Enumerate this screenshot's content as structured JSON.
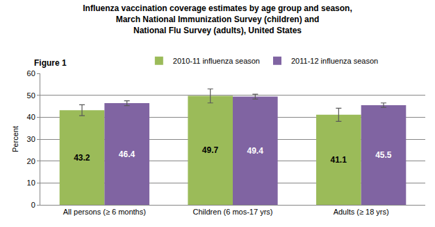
{
  "chart_data": {
    "type": "bar",
    "title": "Influenza vaccination coverage estimates by age group and season,\nMarch National Immunization Survey (children) and\nNational Flu Survey (adults), United States",
    "annotations": [
      "Figure 1"
    ],
    "y_label": "Percent",
    "categories": [
      "All persons (≥ 6 months)",
      "Children (6 mos-17 yrs)",
      "Adults (≥ 18 yrs)"
    ],
    "series": [
      {
        "name": "2010-11 influenza season",
        "color": "#9bbb59",
        "values": [
          43.2,
          49.7,
          41.1
        ],
        "errors": [
          2.5,
          3.2,
          3.0
        ]
      },
      {
        "name": "2011-12 influenza season",
        "color": "#8064a2",
        "values": [
          46.4,
          49.4,
          45.5
        ],
        "errors": [
          1.1,
          1.1,
          1.0
        ]
      }
    ],
    "ylim": [
      0,
      60
    ],
    "yticks": [
      0,
      10,
      20,
      30,
      40,
      50,
      60
    ],
    "grid": true,
    "legend": "top",
    "data_labels": true
  }
}
